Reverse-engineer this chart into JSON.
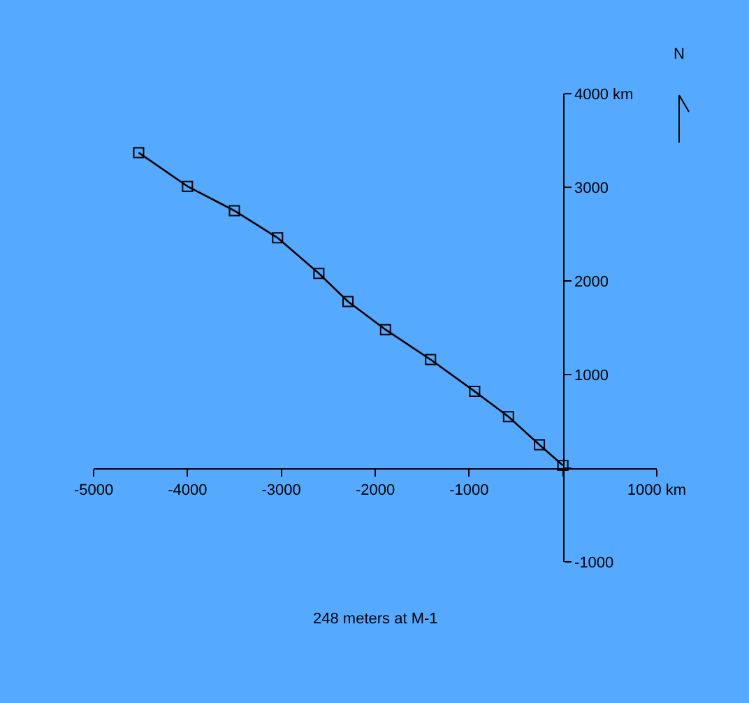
{
  "chart_data": {
    "type": "line",
    "series": [
      {
        "color": "#000000",
        "x": [
          -4520,
          -4000,
          -3500,
          -3040,
          -2600,
          -2290,
          -1890,
          -1410,
          -940,
          -580,
          -250,
          0
        ],
        "values": [
          3370,
          3010,
          2750,
          2460,
          2080,
          1780,
          1480,
          1160,
          820,
          550,
          250,
          30
        ]
      }
    ],
    "xlim": [
      -5000,
      1000
    ],
    "xticks": [
      -5000,
      -4000,
      -3000,
      -2000,
      -1000,
      {
        "value": 0,
        "label": null
      },
      {
        "value": 1000,
        "label": "1000 km"
      }
    ],
    "ylim": [
      -1000,
      4000
    ],
    "yticks": [
      -1000,
      {
        "value": 0,
        "label": null
      },
      1000,
      2000,
      3000,
      {
        "value": 4000,
        "label": "4000 km"
      }
    ],
    "marker": "square",
    "grid": false,
    "legend": false,
    "annotations": [
      "248 meters at M-1",
      "N"
    ]
  }
}
